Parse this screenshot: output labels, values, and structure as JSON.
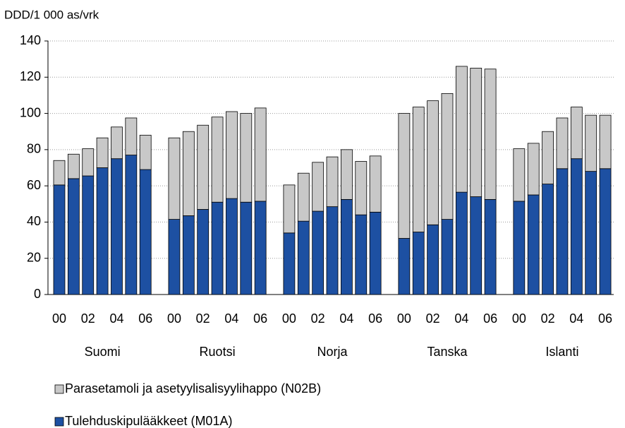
{
  "chart_data": {
    "type": "stacked_bar",
    "y_axis_label": "DDD/1 000  as/vrk",
    "groups": [
      "Suomi",
      "Ruotsi",
      "Norja",
      "Tanska",
      "Islanti"
    ],
    "categories": [
      "00",
      null,
      "02",
      null,
      "04",
      null,
      "06",
      "00",
      null,
      "02",
      null,
      "04",
      null,
      "06",
      "00",
      null,
      "02",
      null,
      "04",
      null,
      "06",
      "00",
      null,
      "02",
      null,
      "04",
      null,
      "06",
      "00",
      null,
      "02",
      null,
      "04",
      null,
      "06"
    ],
    "series": [
      {
        "name": "Tulehduskipulääkkeet (M01A)",
        "color": "#1d50a2",
        "values": [
          60.5,
          64,
          65.5,
          70,
          75,
          77,
          69,
          41.5,
          43.5,
          47,
          51,
          53,
          51,
          51.5,
          34,
          40.5,
          46,
          48.5,
          52.5,
          44,
          45.5,
          31,
          34.5,
          38.5,
          41.5,
          56.5,
          54,
          52.5,
          51.5,
          55,
          61,
          69.5,
          75,
          68,
          69.5
        ]
      },
      {
        "name": "Parasetamoli ja asetyylisalisyylihappo (N02B)",
        "color": "#c8c8c8",
        "values": [
          13.5,
          13.5,
          15,
          16.5,
          17.5,
          20.5,
          19,
          45,
          46.5,
          46.5,
          47,
          48,
          49,
          51.5,
          26.5,
          26.5,
          27,
          27.5,
          27.5,
          29.5,
          31,
          69,
          69,
          68.5,
          69.5,
          69.5,
          71,
          72,
          29,
          28.5,
          29,
          28,
          28.5,
          31,
          29.5
        ]
      }
    ],
    "ylim": [
      0,
      140
    ],
    "yticks": [
      0,
      20,
      40,
      60,
      80,
      100,
      120,
      140
    ],
    "grid": true
  }
}
